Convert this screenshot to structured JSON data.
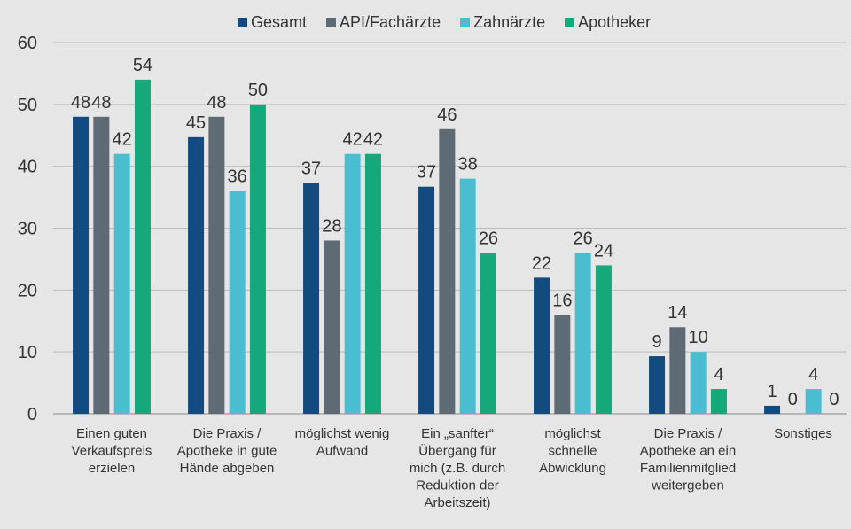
{
  "chart_data": {
    "type": "bar",
    "title": "",
    "xlabel": "",
    "ylabel": "",
    "ylim": [
      0,
      60
    ],
    "yticks": [
      0,
      10,
      20,
      30,
      40,
      50,
      60
    ],
    "grid": true,
    "legend_position": "top",
    "categories": [
      "Einen guten Verkaufspreis erzielen",
      "Die Praxis / Apotheke in gute Hände abgeben",
      "möglichst wenig Aufwand",
      "Ein „sanfter“ Übergang für mich (z.B. durch Reduktion der Arbeitszeit)",
      "möglichst schnelle Abwicklung",
      "Die Praxis / Apotheke an ein Familienmitglied weitergeben",
      "Sonstiges"
    ],
    "category_lines": [
      [
        "Einen guten",
        "Verkaufspreis",
        "erzielen"
      ],
      [
        "Die Praxis /",
        "Apotheke in gute",
        "Hände abgeben"
      ],
      [
        "möglichst wenig",
        "Aufwand"
      ],
      [
        "Ein „sanfter“",
        "Übergang für",
        "mich (z.B. durch",
        "Reduktion der",
        "Arbeitszeit)"
      ],
      [
        "möglichst",
        "schnelle",
        "Abwicklung"
      ],
      [
        "Die Praxis /",
        "Apotheke an ein",
        "Familienmitglied",
        "weitergeben"
      ],
      [
        "Sonstiges"
      ]
    ],
    "series": [
      {
        "name": "Gesamt",
        "color": "#134a80",
        "values": [
          48,
          44.7,
          37.3,
          36.7,
          22,
          9.3,
          1.3
        ],
        "labels": [
          "48",
          "45",
          "37",
          "37",
          "22",
          "9",
          "1"
        ]
      },
      {
        "name": "API/Fachärzte",
        "color": "#5f6b74",
        "values": [
          48,
          48,
          28,
          46,
          16,
          14,
          0
        ],
        "labels": [
          "48",
          "48",
          "28",
          "46",
          "16",
          "14",
          "0"
        ]
      },
      {
        "name": "Zahnärzte",
        "color": "#4bbdd1",
        "values": [
          42,
          36,
          42,
          38,
          26,
          10,
          4
        ],
        "labels": [
          "42",
          "36",
          "42",
          "38",
          "26",
          "10",
          "4"
        ]
      },
      {
        "name": "Apotheker",
        "color": "#14a87a",
        "values": [
          54,
          50,
          42,
          26,
          24,
          4,
          0
        ],
        "labels": [
          "54",
          "50",
          "42",
          "26",
          "24",
          "4",
          "0"
        ]
      }
    ]
  }
}
